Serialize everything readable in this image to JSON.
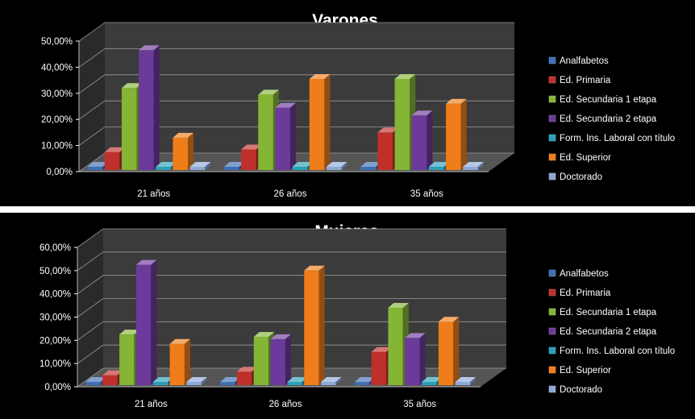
{
  "chart_data": [
    {
      "type": "bar",
      "title": "Varones",
      "categories": [
        "21 años",
        "26 años",
        "35 años"
      ],
      "ylim": [
        0,
        50
      ],
      "yticks": [
        "0,00%",
        "10,00%",
        "20,00%",
        "30,00%",
        "40,00%",
        "50,00%"
      ],
      "legend_position": "right",
      "series": [
        {
          "name": "Analfabetos",
          "color": "#3e6fb5",
          "values": [
            0,
            0,
            0
          ]
        },
        {
          "name": "Ed. Primaria",
          "color": "#c0302b",
          "values": [
            7.5,
            8.5,
            15
          ]
        },
        {
          "name": "Ed. Secundaria 1 etapa",
          "color": "#84b535",
          "values": [
            32,
            29.5,
            35.5
          ]
        },
        {
          "name": "Ed. Secundaria 2 etapa",
          "color": "#6b3a9a",
          "values": [
            46.5,
            24.5,
            21.5
          ]
        },
        {
          "name": "Form. Ins. Laboral con título",
          "color": "#2aa0b8",
          "values": [
            0,
            0,
            0
          ]
        },
        {
          "name": "Ed. Superior",
          "color": "#ee7d1a",
          "values": [
            13,
            35.5,
            26
          ]
        },
        {
          "name": "Doctorado",
          "color": "#8ea8d8",
          "values": [
            0,
            0,
            0
          ]
        }
      ]
    },
    {
      "type": "bar",
      "title": "Mujeres",
      "categories": [
        "21 años",
        "26 años",
        "35 años"
      ],
      "ylim": [
        0,
        60
      ],
      "yticks": [
        "0,00%",
        "10,00%",
        "20,00%",
        "30,00%",
        "40,00%",
        "50,00%",
        "60,00%"
      ],
      "legend_position": "right",
      "series": [
        {
          "name": "Analfabetos",
          "color": "#3e6fb5",
          "values": [
            0,
            0,
            0
          ]
        },
        {
          "name": "Ed. Primaria",
          "color": "#c0302b",
          "values": [
            5,
            6.5,
            15
          ]
        },
        {
          "name": "Ed. Secundaria 1 etapa",
          "color": "#84b535",
          "values": [
            22.5,
            21.5,
            34
          ]
        },
        {
          "name": "Ed. Secundaria 2 etapa",
          "color": "#6b3a9a",
          "values": [
            52.5,
            20.5,
            21
          ]
        },
        {
          "name": "Form. Ins. Laboral con título",
          "color": "#2aa0b8",
          "values": [
            0,
            0,
            0
          ]
        },
        {
          "name": "Ed. Superior",
          "color": "#ee7d1a",
          "values": [
            18.5,
            50,
            28
          ]
        },
        {
          "name": "Doctorado",
          "color": "#8ea8d8",
          "values": [
            0,
            0,
            0
          ]
        }
      ]
    }
  ]
}
